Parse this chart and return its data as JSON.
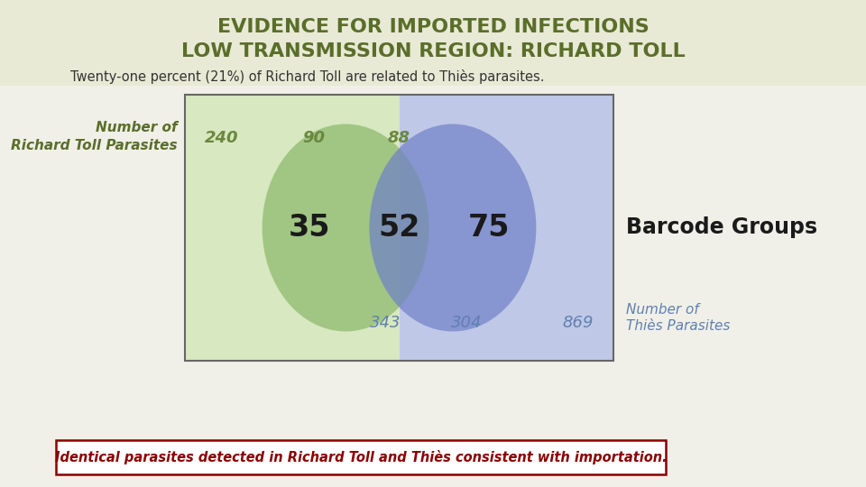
{
  "title_line1": "EVIDENCE FOR IMPORTED INFECTIONS",
  "title_line2": "LOW TRANSMISSION REGION: RICHARD TOLL",
  "title_bg_color": "#e8ead5",
  "subtitle": "Twenty-one percent (21%) of Richard Toll are related to Thiès parasites.",
  "left_label_line1": "Number of",
  "left_label_line2": "Richard Toll Parasites",
  "right_label_line1": "Number of",
  "right_label_line2": "Thiès Parasites",
  "barcode_label": "Barcode Groups",
  "bottom_note": "Identical parasites detected in Richard Toll and Thiès consistent with importation.",
  "green_circle_color": "#8ab86a",
  "green_bg_color": "#d8e8c0",
  "blue_circle_color": "#7080c8",
  "blue_bg_color": "#c0c8e8",
  "title_color": "#5a6e2a",
  "label_color": "#5a6e2a",
  "num_color_top": "#6a8840",
  "num_color_bottom": "#6080b0",
  "num_240": "240",
  "num_90": "90",
  "num_88": "88",
  "num_35": "35",
  "num_52": "52",
  "num_75": "75",
  "num_343": "343",
  "num_304": "304",
  "num_869": "869",
  "bottom_text_color": "#8b0000",
  "bottom_border_color": "#8b0000",
  "bg_color": "#f0f0e8",
  "subtitle_color": "#333333"
}
